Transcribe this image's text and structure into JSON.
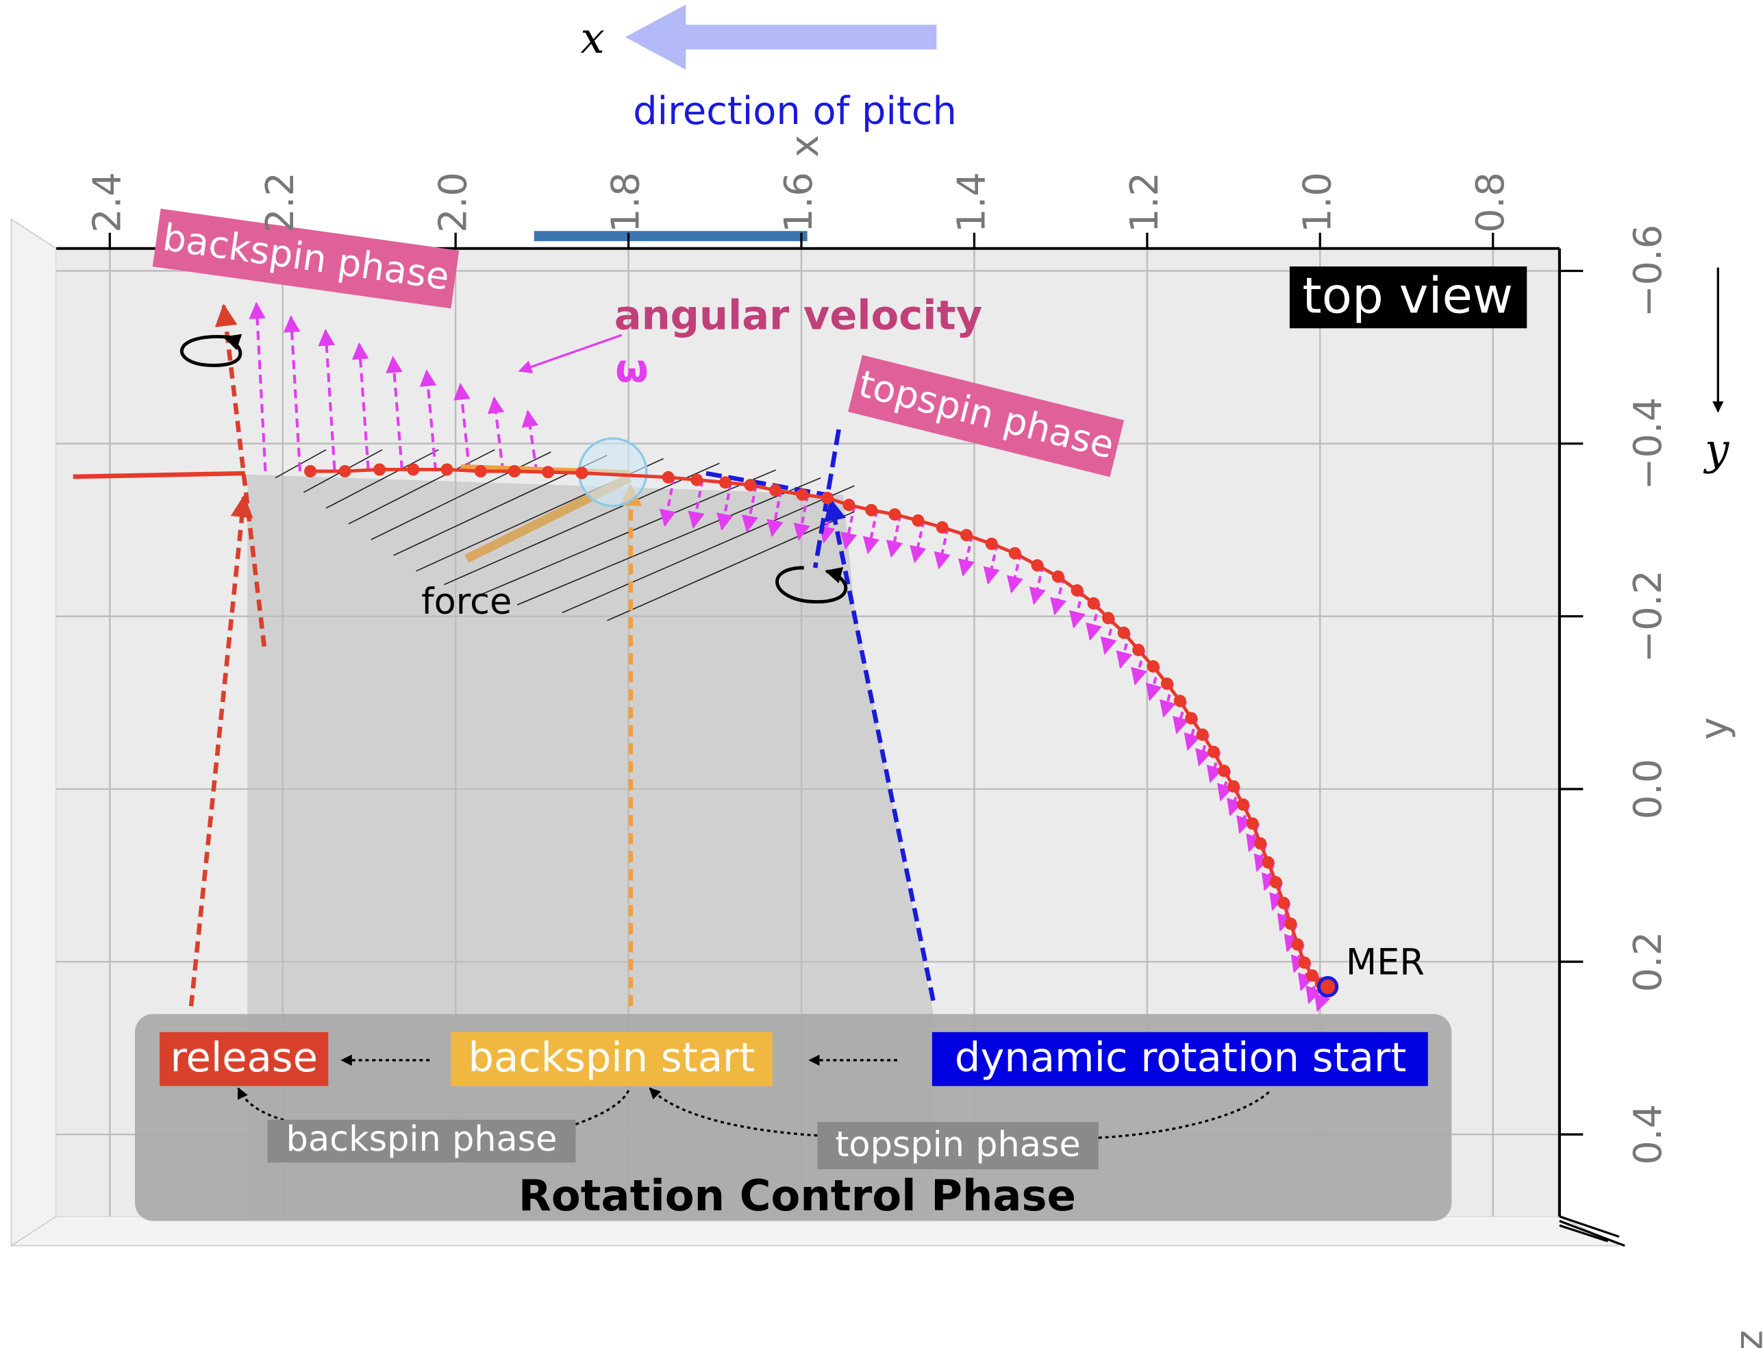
{
  "chart_data": {
    "type": "scatter",
    "x_label": "x",
    "y_label": "y",
    "z_label": "z",
    "xlim": [
      2.462,
      0.723
    ],
    "ylim": [
      -0.626,
      0.495
    ],
    "xticks": [
      2.4,
      2.2,
      {
        "value": 2,
        "label": "2.0"
      },
      1.8,
      1.6,
      1.4,
      1.2,
      {
        "value": 1,
        "label": "1.0"
      },
      0.8
    ],
    "yticks": [
      {
        "value": -0.6,
        "label": "−0.6"
      },
      {
        "value": -0.4,
        "label": "−0.4"
      },
      {
        "value": -0.2,
        "label": "−0.2"
      },
      {
        "value": 0,
        "label": "0.0"
      },
      0.2,
      0.4
    ],
    "grid": true,
    "color": "#e8392a",
    "x": [
      2.168,
      2.128,
      2.088,
      2.049,
      2.01,
      1.971,
      1.932,
      1.893,
      1.854,
      1.754,
      1.721,
      1.688,
      1.659,
      1.63,
      1.599,
      1.57,
      1.545,
      1.519,
      1.492,
      1.465,
      1.437,
      1.409,
      1.38,
      1.353,
      1.327,
      1.303,
      1.281,
      1.262,
      1.245,
      1.227,
      1.21,
      1.193,
      1.177,
      1.162,
      1.149,
      1.136,
      1.123,
      1.111,
      1.1,
      1.089,
      1.078,
      1.069,
      1.06,
      1.051,
      1.042,
      1.034,
      1.026,
      1.018,
      1.009,
      0.999
    ],
    "values": [
      -0.368,
      -0.368,
      -0.37,
      -0.37,
      -0.37,
      -0.368,
      -0.368,
      -0.367,
      -0.366,
      -0.361,
      -0.358,
      -0.355,
      -0.352,
      -0.346,
      -0.341,
      -0.337,
      -0.329,
      -0.323,
      -0.318,
      -0.311,
      -0.303,
      -0.294,
      -0.284,
      -0.273,
      -0.259,
      -0.246,
      -0.23,
      -0.215,
      -0.198,
      -0.181,
      -0.161,
      -0.142,
      -0.122,
      -0.102,
      -0.082,
      -0.063,
      -0.043,
      -0.021,
      -0.003,
      0.018,
      0.04,
      0.063,
      0.085,
      0.108,
      0.132,
      0.156,
      0.18,
      0.201,
      0.216,
      0.225
    ],
    "annotations": [
      {
        "text": "MER",
        "x": 0.991,
        "y": 0.229,
        "color": "#1a1adb"
      }
    ],
    "notes": {
      "pitch_axis": "x",
      "pitch_direction": "direction of pitch",
      "y_arrow": "y",
      "view": "top view",
      "backspin_phase": "backspin phase",
      "angular_velocity": "angular velocity",
      "omega": "ω",
      "topspin_phase": "topspin phase",
      "force": "force",
      "release": "release",
      "backspin_start": "backspin start",
      "dynamic_rotation_start": "dynamic rotation start",
      "backspin_phase_label": "backspin phase",
      "topspin_phase_label": "topspin phase",
      "rotation_control_phase": "Rotation Control Phase"
    }
  }
}
